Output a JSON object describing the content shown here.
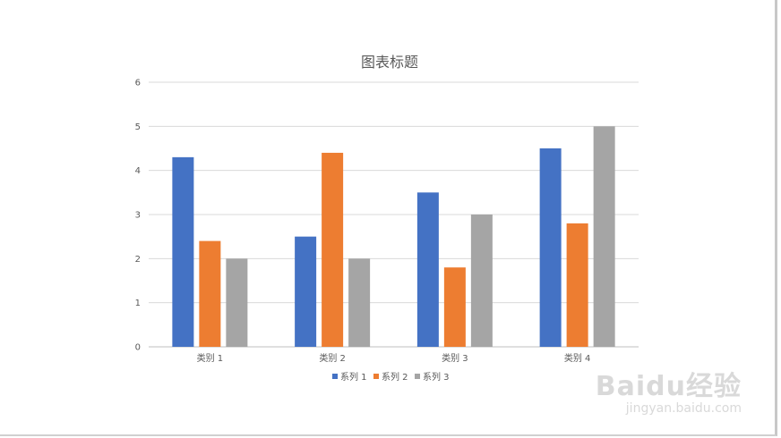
{
  "chart_data": {
    "type": "bar",
    "title": "图表标题",
    "categories": [
      "类别 1",
      "类别 2",
      "类别 3",
      "类别 4"
    ],
    "series": [
      {
        "name": "系列 1",
        "color": "#4472C4",
        "values": [
          4.3,
          2.5,
          3.5,
          4.5
        ]
      },
      {
        "name": "系列 2",
        "color": "#ED7D31",
        "values": [
          2.4,
          4.4,
          1.8,
          2.8
        ]
      },
      {
        "name": "系列 3",
        "color": "#A5A5A5",
        "values": [
          2,
          2,
          3,
          5
        ]
      }
    ],
    "ylim": [
      0,
      6
    ],
    "yticks": [
      0,
      1,
      2,
      3,
      4,
      5,
      6
    ],
    "grid": true,
    "legend_position": "bottom"
  },
  "watermark": {
    "logo": "Baidu经验",
    "url": "jingyan.baidu.com"
  }
}
